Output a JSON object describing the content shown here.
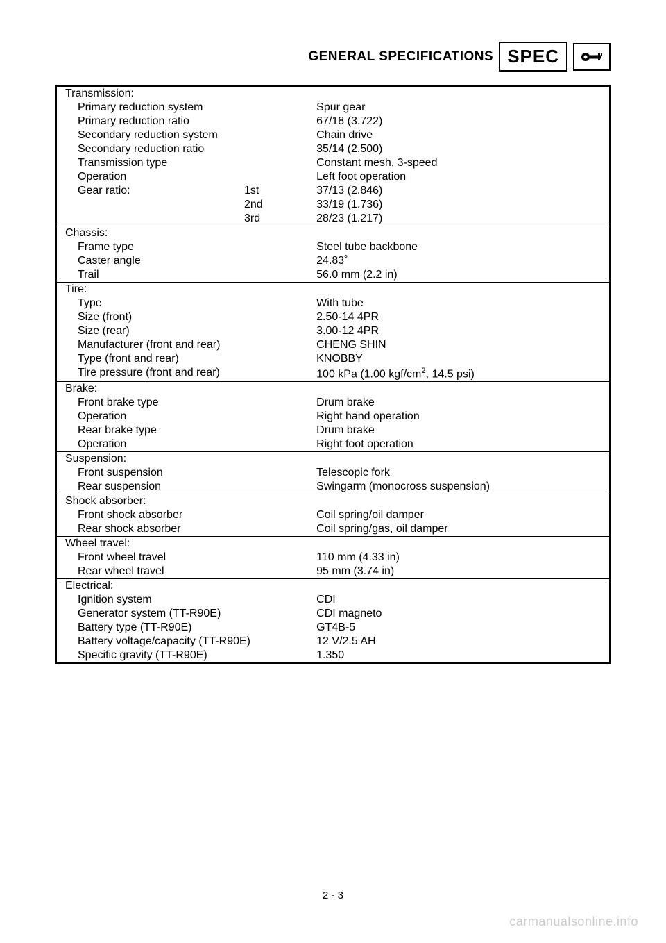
{
  "header": {
    "title": "GENERAL SPECIFICATIONS",
    "spec_label": "SPEC"
  },
  "sections": [
    {
      "title": "Transmission:",
      "rows": [
        {
          "label": "Primary reduction system",
          "value": "Spur gear"
        },
        {
          "label": "Primary reduction ratio",
          "value": "67/18 (3.722)"
        },
        {
          "label": "Secondary reduction system",
          "value": "Chain drive"
        },
        {
          "label": "Secondary reduction ratio",
          "value": "35/14 (2.500)"
        },
        {
          "label": "Transmission type",
          "value": "Constant mesh, 3-speed"
        },
        {
          "label": "Operation",
          "value": "Left foot operation"
        },
        {
          "label": "Gear ratio:",
          "sublabel": "1st",
          "value": "37/13 (2.846)"
        },
        {
          "label": "",
          "sublabel": "2nd",
          "value": "33/19 (1.736)"
        },
        {
          "label": "",
          "sublabel": "3rd",
          "value": "28/23 (1.217)"
        }
      ]
    },
    {
      "title": "Chassis:",
      "rows": [
        {
          "label": "Frame type",
          "value": "Steel tube backbone"
        },
        {
          "label": "Caster angle",
          "value": "24.83˚"
        },
        {
          "label": "Trail",
          "value": "56.0 mm (2.2 in)"
        }
      ]
    },
    {
      "title": "Tire:",
      "rows": [
        {
          "label": "Type",
          "value": "With tube"
        },
        {
          "label": "Size (front)",
          "value": "2.50-14 4PR"
        },
        {
          "label": "Size (rear)",
          "value": "3.00-12 4PR"
        },
        {
          "label": "Manufacturer (front and rear)",
          "value": "CHENG SHIN"
        },
        {
          "label": "Type (front and rear)",
          "value": "KNOBBY"
        },
        {
          "label": "Tire pressure (front and rear)",
          "value_html": "100 kPa (1.00 kgf/cm<sup>2</sup>, 14.5 psi)"
        }
      ]
    },
    {
      "title": "Brake:",
      "rows": [
        {
          "label": "Front brake type",
          "value": "Drum brake"
        },
        {
          "label": "Operation",
          "value": "Right hand operation"
        },
        {
          "label": "Rear brake type",
          "value": "Drum brake"
        },
        {
          "label": "Operation",
          "value": "Right foot operation"
        }
      ]
    },
    {
      "title": "Suspension:",
      "rows": [
        {
          "label": "Front suspension",
          "value": "Telescopic fork"
        },
        {
          "label": "Rear suspension",
          "value": "Swingarm (monocross suspension)"
        }
      ]
    },
    {
      "title": "Shock absorber:",
      "rows": [
        {
          "label": "Front shock absorber",
          "value": "Coil spring/oil damper"
        },
        {
          "label": "Rear shock absorber",
          "value": "Coil spring/gas, oil damper"
        }
      ]
    },
    {
      "title": "Wheel travel:",
      "rows": [
        {
          "label": "Front wheel travel",
          "value": "110 mm (4.33 in)"
        },
        {
          "label": "Rear wheel travel",
          "value": "95 mm (3.74 in)"
        }
      ]
    },
    {
      "title": "Electrical:",
      "rows": [
        {
          "label": "Ignition system",
          "value": "CDI"
        },
        {
          "label": "Generator system (TT-R90E)",
          "value": "CDI magneto"
        },
        {
          "label": "Battery type (TT-R90E)",
          "value": "GT4B-5"
        },
        {
          "label": "Battery voltage/capacity (TT-R90E)",
          "value": "12 V/2.5 AH"
        },
        {
          "label": "Specific gravity (TT-R90E)",
          "value": "1.350"
        }
      ]
    }
  ],
  "page_number": "2 - 3",
  "watermark": "carmanualsonline.info",
  "colors": {
    "text": "#000000",
    "border": "#000000",
    "watermark": "#cccccc",
    "background": "#ffffff"
  }
}
